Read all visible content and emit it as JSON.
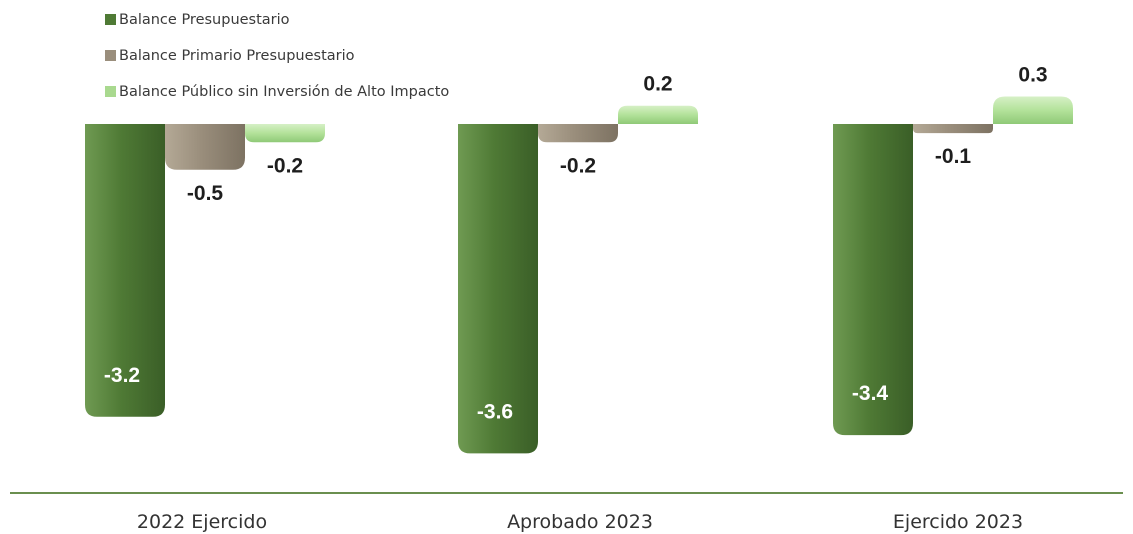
{
  "chart_data": {
    "type": "bar",
    "categories": [
      "2022 Ejercido",
      "Aprobado 2023",
      "Ejercido 2023"
    ],
    "series": [
      {
        "name": "Balance Presupuestario",
        "values": [
          -3.2,
          -3.6,
          -3.4
        ],
        "labels": [
          "-3.2",
          "-3.6",
          "-3.4"
        ],
        "color": "#4f7a35"
      },
      {
        "name": "Balance Primario Presupuestario",
        "values": [
          -0.5,
          -0.2,
          -0.1
        ],
        "labels": [
          "-0.5",
          "-0.2",
          "-0.1"
        ],
        "color": "#9a8e7c"
      },
      {
        "name": "Balance Público sin Inversión de Alto Impacto",
        "values": [
          -0.2,
          0.2,
          0.3
        ],
        "labels": [
          "-0.2",
          "0.2",
          "0.3"
        ],
        "color": "#a9d98f"
      }
    ],
    "legend_position": "top-left",
    "grid": false
  }
}
